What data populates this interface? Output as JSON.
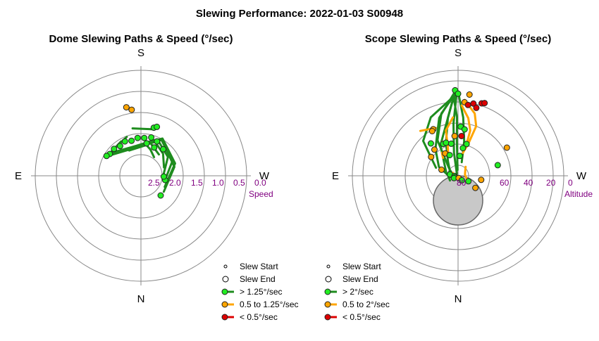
{
  "title": "Slewing Performance: 2022-01-03 S00948",
  "colors": {
    "fast": "#1e8c1e",
    "fast_marker": "#22ee22",
    "medium": "#ffa500",
    "slow": "#dd0000",
    "grid": "#888888",
    "tick": "#800080",
    "exclusion": "#c8c8c8"
  },
  "charts": [
    {
      "type": "polar",
      "title": "Dome Slewing Paths & Speed (°/sec)",
      "compass": {
        "top": "S",
        "left": "E",
        "right": "W",
        "bottom": "N"
      },
      "radial_axis_label": "Speed",
      "radial_ticks": [
        "2.5",
        "2.0",
        "1.5",
        "1.0",
        "0.5",
        "0.0"
      ],
      "legend": [
        {
          "label": "Slew Start",
          "kind": "start"
        },
        {
          "label": "Slew End",
          "kind": "end"
        },
        {
          "label": "> 1.25°/sec",
          "kind": "fast"
        },
        {
          "label": "0.5 to 1.25°/sec",
          "kind": "medium"
        },
        {
          "label": "< 0.5°/sec",
          "kind": "slow"
        }
      ]
    },
    {
      "type": "polar",
      "title": "Scope Slewing Paths & Speed (°/sec)",
      "compass": {
        "top": "S",
        "left": "E",
        "right": "W",
        "bottom": "N"
      },
      "radial_axis_label": "Altitude",
      "radial_ticks": [
        "80",
        "60",
        "40",
        "20",
        "0"
      ],
      "legend": [
        {
          "label": "Slew Start",
          "kind": "start"
        },
        {
          "label": "Slew End",
          "kind": "end"
        },
        {
          "label": "> 2°/sec",
          "kind": "fast"
        },
        {
          "label": "0.5 to 2°/sec",
          "kind": "medium"
        },
        {
          "label": "< 0.5°/sec",
          "kind": "slow"
        }
      ]
    }
  ],
  "chart_data": [
    {
      "type": "scatter",
      "title": "Dome Slewing Paths & Speed (°/sec)",
      "radial": {
        "label": "Speed",
        "range": [
          2.5,
          0.0
        ],
        "ticks": [
          2.5,
          2.0,
          1.5,
          1.0,
          0.5,
          0.0
        ]
      },
      "angular": {
        "top": "S",
        "left": "E",
        "right": "W",
        "bottom": "N"
      },
      "paths": [
        {
          "speed_class": "fast",
          "points": [
            [
              -25,
              2.3
            ],
            [
              10,
              2.2
            ],
            [
              20,
              2.3
            ],
            [
              35,
              2.45
            ]
          ]
        },
        {
          "speed_class": "fast",
          "points": [
            [
              -30,
              2.25
            ],
            [
              15,
              2.1
            ],
            [
              40,
              2.3
            ]
          ]
        },
        {
          "speed_class": "fast",
          "points": [
            [
              -35,
              2.2
            ],
            [
              20,
              2.0
            ],
            [
              45,
              2.2
            ],
            [
              70,
              2.4
            ]
          ]
        },
        {
          "speed_class": "fast",
          "points": [
            [
              -40,
              2.15
            ],
            [
              25,
              1.95
            ],
            [
              55,
              2.15
            ],
            [
              85,
              2.45
            ]
          ]
        },
        {
          "speed_class": "fast",
          "points": [
            [
              -45,
              2.1
            ],
            [
              30,
              1.9
            ],
            [
              65,
              2.1
            ],
            [
              100,
              2.4
            ]
          ]
        },
        {
          "speed_class": "fast",
          "points": [
            [
              -50,
              2.05
            ],
            [
              30,
              1.85
            ],
            [
              70,
              2.05
            ],
            [
              115,
              2.35
            ]
          ]
        },
        {
          "speed_class": "fast",
          "points": [
            [
              -55,
              2.05
            ],
            [
              30,
              1.9
            ],
            [
              75,
              2.1
            ],
            [
              125,
              2.3
            ]
          ]
        },
        {
          "speed_class": "fast",
          "points": [
            [
              -10,
              1.7
            ],
            [
              15,
              1.7
            ]
          ]
        },
        {
          "speed_class": "fast",
          "points": [
            [
              -45,
              2.0
            ],
            [
              -20,
              1.9
            ]
          ]
        },
        {
          "speed_class": "fast",
          "points": [
            [
              -50,
              2.0
            ],
            [
              -30,
              1.95
            ]
          ]
        }
      ],
      "points": [
        {
          "az": 15,
          "speed": 1.65,
          "class": "fast"
        },
        {
          "az": 18,
          "speed": 1.6,
          "class": "fast"
        },
        {
          "az": -8,
          "speed": 1.15,
          "class": "medium"
        },
        {
          "az": -12,
          "speed": 1.05,
          "class": "medium"
        },
        {
          "az": 135,
          "speed": 2.3,
          "class": "fast"
        },
        {
          "az": 100,
          "speed": 2.4,
          "class": "fast"
        },
        {
          "az": 92,
          "speed": 2.45,
          "class": "fast"
        },
        {
          "az": -45,
          "speed": 2.0,
          "class": "fast"
        },
        {
          "az": -35,
          "speed": 2.05,
          "class": "fast"
        },
        {
          "az": -25,
          "speed": 2.0,
          "class": "fast"
        },
        {
          "az": -15,
          "speed": 2.05,
          "class": "fast"
        },
        {
          "az": -5,
          "speed": 2.0,
          "class": "fast"
        },
        {
          "az": 5,
          "speed": 2.0,
          "class": "fast"
        },
        {
          "az": 15,
          "speed": 1.95,
          "class": "fast"
        },
        {
          "az": 25,
          "speed": 2.0,
          "class": "fast"
        },
        {
          "az": -55,
          "speed": 2.0,
          "class": "fast"
        },
        {
          "az": -60,
          "speed": 1.95,
          "class": "fast"
        },
        {
          "az": 10,
          "speed": 2.15,
          "class": "fast"
        },
        {
          "az": 25,
          "speed": 2.2,
          "class": "fast"
        },
        {
          "az": 40,
          "speed": 2.1,
          "class": "fast"
        }
      ]
    },
    {
      "type": "scatter",
      "title": "Scope Slewing Paths & Speed (°/sec)",
      "radial": {
        "label": "Altitude",
        "range": [
          90,
          0
        ],
        "ticks": [
          80,
          60,
          40,
          20,
          0
        ]
      },
      "angular": {
        "top": "S",
        "left": "E",
        "right": "W",
        "bottom": "N"
      },
      "exclusion_zone": {
        "center_az": 180,
        "center_alt": 69,
        "radius_deg": 21
      },
      "paths": [
        {
          "speed_class": "fast",
          "points": [
            [
              -2,
              18
            ],
            [
              -3,
              25
            ],
            [
              -1,
              40
            ],
            [
              -2,
              60
            ],
            [
              -5,
              85
            ]
          ]
        },
        {
          "speed_class": "fast",
          "points": [
            [
              -2,
              18
            ],
            [
              -10,
              40
            ],
            [
              -20,
              60
            ],
            [
              -35,
              75
            ],
            [
              -60,
              82
            ],
            [
              -100,
              82
            ],
            [
              -120,
              82
            ]
          ]
        },
        {
          "speed_class": "fast",
          "points": [
            [
              -2,
              20
            ],
            [
              -15,
              35
            ],
            [
              -30,
              55
            ],
            [
              -50,
              80
            ],
            [
              -75,
              85
            ]
          ]
        },
        {
          "speed_class": "fast",
          "points": [
            [
              -3,
              22
            ],
            [
              -25,
              35
            ],
            [
              -45,
              48
            ],
            [
              -70,
              70
            ]
          ]
        },
        {
          "speed_class": "fast",
          "points": [
            [
              -2,
              18
            ],
            [
              -18,
              38
            ],
            [
              -40,
              60
            ],
            [
              -65,
              72
            ],
            [
              -90,
              82
            ],
            [
              -110,
              85
            ]
          ]
        },
        {
          "speed_class": "fast",
          "points": [
            [
              -2,
              18
            ],
            [
              -30,
              60
            ],
            [
              -80,
              80
            ],
            [
              -95,
              86
            ]
          ]
        },
        {
          "speed_class": "fast",
          "points": [
            [
              -1,
              20
            ],
            [
              -5,
              45
            ],
            [
              -10,
              70
            ],
            [
              -30,
              88
            ]
          ]
        },
        {
          "speed_class": "fast",
          "points": [
            [
              0,
              18
            ],
            [
              5,
              40
            ],
            [
              10,
              60
            ],
            [
              15,
              78
            ]
          ]
        },
        {
          "speed_class": "medium",
          "points": [
            [
              -5,
              40
            ],
            [
              -15,
              50
            ],
            [
              -20,
              65
            ],
            [
              -25,
              70
            ]
          ]
        },
        {
          "speed_class": "medium",
          "points": [
            [
              3,
              30
            ],
            [
              10,
              40
            ],
            [
              15,
              50
            ],
            [
              15,
              60
            ]
          ]
        },
        {
          "speed_class": "medium",
          "points": [
            [
              5,
              25
            ],
            [
              15,
              35
            ],
            [
              20,
              45
            ],
            [
              18,
              60
            ],
            [
              12,
              70
            ]
          ]
        },
        {
          "speed_class": "medium",
          "points": [
            [
              40,
              80
            ],
            [
              60,
              83
            ],
            [
              80,
              84
            ],
            [
              110,
              82
            ]
          ]
        },
        {
          "speed_class": "medium",
          "points": [
            [
              -60,
              85
            ],
            [
              -80,
              86
            ],
            [
              -100,
              85
            ]
          ]
        },
        {
          "speed_class": "medium",
          "points": [
            [
              -35,
              66
            ],
            [
              -40,
              70
            ]
          ]
        },
        {
          "speed_class": "medium",
          "points": [
            [
              -25,
              58
            ],
            [
              -10,
              62
            ]
          ]
        },
        {
          "speed_class": "medium",
          "points": [
            [
              -40,
              40
            ],
            [
              -25,
              45
            ]
          ]
        }
      ],
      "points": [
        {
          "az": -2,
          "alt": 17,
          "class": "fast"
        },
        {
          "az": 0,
          "alt": 20,
          "class": "fast"
        },
        {
          "az": 5,
          "alt": 27,
          "class": "medium"
        },
        {
          "az": 8,
          "alt": 29,
          "class": "slow"
        },
        {
          "az": 12,
          "alt": 27,
          "class": "slow"
        },
        {
          "az": 15,
          "alt": 30,
          "class": "slow"
        },
        {
          "az": -28,
          "alt": 45,
          "class": "medium"
        },
        {
          "az": -30,
          "alt": 46,
          "class": "medium"
        },
        {
          "az": -42,
          "alt": 60,
          "class": "medium"
        },
        {
          "az": -40,
          "alt": 54,
          "class": "fast"
        },
        {
          "az": -25,
          "alt": 60,
          "class": "fast"
        },
        {
          "az": -20,
          "alt": 60,
          "class": "fast"
        },
        {
          "az": -12,
          "alt": 62,
          "class": "fast"
        },
        {
          "az": -30,
          "alt": 68,
          "class": "medium"
        },
        {
          "az": -22,
          "alt": 71,
          "class": "fast"
        },
        {
          "az": -5,
          "alt": 56,
          "class": "medium"
        },
        {
          "az": 5,
          "alt": 56,
          "class": "slow"
        },
        {
          "az": 3,
          "alt": 48,
          "class": "fast"
        },
        {
          "az": 8,
          "alt": 50,
          "class": "fast"
        },
        {
          "az": 15,
          "alt": 62,
          "class": "fast"
        },
        {
          "az": 10,
          "alt": 66,
          "class": "fast"
        },
        {
          "az": 5,
          "alt": 73,
          "class": "fast"
        },
        {
          "az": -55,
          "alt": 62,
          "class": "medium"
        },
        {
          "az": -70,
          "alt": 75,
          "class": "medium"
        },
        {
          "az": -80,
          "alt": 83,
          "class": "fast"
        },
        {
          "az": -92,
          "alt": 87,
          "class": "fast"
        },
        {
          "az": -115,
          "alt": 87,
          "class": "fast"
        },
        {
          "az": -120,
          "alt": 86,
          "class": "fast"
        },
        {
          "az": 60,
          "alt": 42,
          "class": "medium"
        },
        {
          "az": 75,
          "alt": 55,
          "class": "fast"
        },
        {
          "az": 100,
          "alt": 70,
          "class": "medium"
        },
        {
          "az": 125,
          "alt": 72,
          "class": "medium"
        },
        {
          "az": 165,
          "alt": 88,
          "class": "medium"
        },
        {
          "az": 140,
          "alt": 85,
          "class": "fast"
        },
        {
          "az": 118,
          "alt": 80,
          "class": "fast"
        },
        {
          "az": 8,
          "alt": 20,
          "class": "medium"
        },
        {
          "az": 18,
          "alt": 25,
          "class": "slow"
        },
        {
          "az": 20,
          "alt": 24,
          "class": "slow"
        }
      ]
    }
  ]
}
